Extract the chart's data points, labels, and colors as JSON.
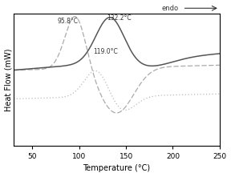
{
  "xlabel": "Temperature (°C)",
  "ylabel": "Heat Flow (mW)",
  "xlim": [
    30,
    250
  ],
  "ylim": [
    -0.7,
    1.05
  ],
  "endo_label": "endo",
  "annotation1": "95.8°C",
  "annotation2": "132.2°C",
  "annotation3": "119.0°C",
  "xticks": [
    50,
    100,
    150,
    200,
    250
  ],
  "background_color": "#ffffff",
  "curve1_color": "#aaaaaa",
  "curve2_color": "#555555",
  "curve3_color": "#aaaaaa"
}
